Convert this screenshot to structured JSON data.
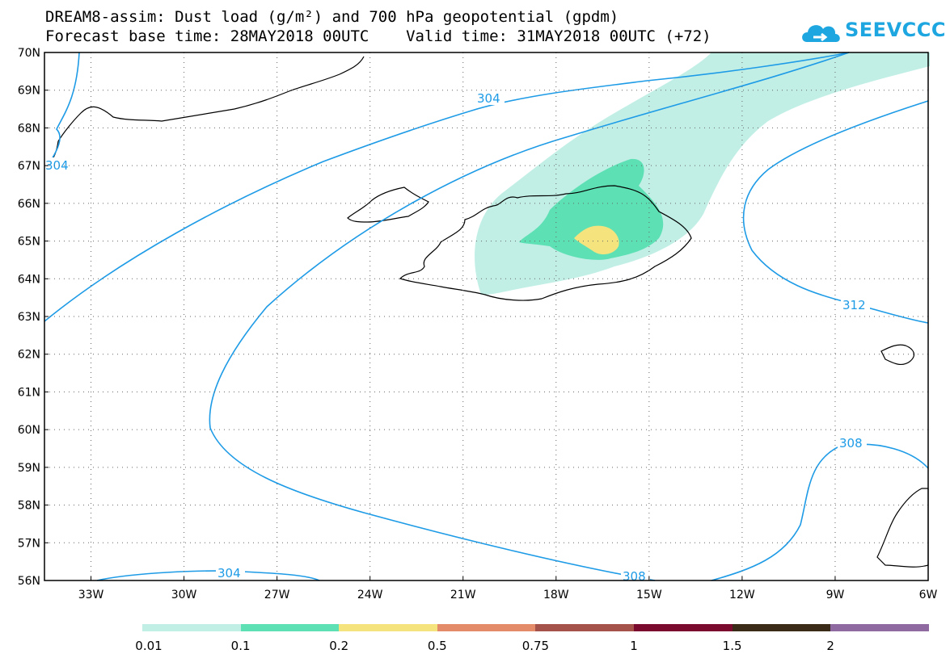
{
  "title": {
    "line1": "DREAM8-assim: Dust load (g/m²) and 700 hPa geopotential (gpdm)",
    "line2": "Forecast base time: 28MAY2018 00UTC    Valid time: 31MAY2018 00UTC (+72)"
  },
  "logo": {
    "text": "SEEVCCC",
    "icon": "cloud-arrow-icon",
    "color": "#1ea6e0"
  },
  "map": {
    "lat_labels": [
      "70N",
      "69N",
      "68N",
      "67N",
      "66N",
      "65N",
      "64N",
      "63N",
      "62N",
      "61N",
      "60N",
      "59N",
      "58N",
      "57N",
      "56N"
    ],
    "lon_labels": [
      "33W",
      "30W",
      "27W",
      "24W",
      "21W",
      "18W",
      "15W",
      "12W",
      "9W",
      "6W"
    ],
    "extent": {
      "lon": [
        -34.5,
        -6
      ],
      "lat": [
        56,
        70
      ]
    },
    "contours": [
      {
        "label": "304"
      },
      {
        "label": "304"
      },
      {
        "label": "304"
      },
      {
        "label": "308"
      },
      {
        "label": "308"
      },
      {
        "label": "312"
      }
    ],
    "contour_color": "#1e9be6"
  },
  "legend": {
    "levels": [
      "0.01",
      "0.1",
      "0.2",
      "0.5",
      "0.75",
      "1",
      "1.5",
      "2"
    ],
    "colors": [
      "#c1efe6",
      "#5de0b4",
      "#f5e47e",
      "#e48c6a",
      "#a5524a",
      "#7a0a2e",
      "#3a2a18",
      "#8e6aa0"
    ]
  }
}
